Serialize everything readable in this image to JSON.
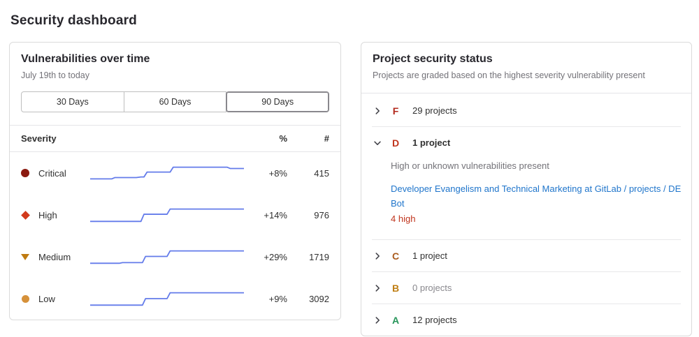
{
  "page": {
    "title": "Security dashboard"
  },
  "colors": {
    "sparkline": "#637bea",
    "link": "#1f75cb",
    "card_border": "#dbdbdb"
  },
  "vuln_card": {
    "title": "Vulnerabilities over time",
    "subtitle": "July 19th to today",
    "range_buttons": [
      {
        "label": "30 Days",
        "active": false
      },
      {
        "label": "60 Days",
        "active": false
      },
      {
        "label": "90 Days",
        "active": true
      }
    ],
    "table": {
      "headers": {
        "severity": "Severity",
        "percent": "%",
        "count": "#"
      },
      "rows": [
        {
          "label": "Critical",
          "icon": "severity-critical-icon",
          "color": "#8b1a10",
          "percent": "+8%",
          "count": "415",
          "spark": [
            [
              0,
              24
            ],
            [
              14,
              24
            ],
            [
              16,
              22
            ],
            [
              30,
              22
            ],
            [
              33,
              21
            ],
            [
              35,
              21
            ],
            [
              37,
              13.5
            ],
            [
              52,
              13.5
            ],
            [
              54,
              6
            ],
            [
              89,
              6
            ],
            [
              91,
              8
            ],
            [
              100,
              8
            ]
          ]
        },
        {
          "label": "High",
          "icon": "severity-high-icon",
          "color": "#d23a1b",
          "percent": "+14%",
          "count": "976",
          "spark": [
            [
              0,
              25
            ],
            [
              33,
              25
            ],
            [
              35,
              14
            ],
            [
              50,
              14
            ],
            [
              52,
              6
            ],
            [
              100,
              6
            ]
          ]
        },
        {
          "label": "Medium",
          "icon": "severity-medium-icon",
          "color": "#bf7b11",
          "percent": "+29%",
          "count": "1719",
          "spark": [
            [
              0,
              25
            ],
            [
              19,
              25
            ],
            [
              21,
              24
            ],
            [
              34,
              24
            ],
            [
              36,
              14.5
            ],
            [
              50,
              14.5
            ],
            [
              52,
              6
            ],
            [
              100,
              6
            ]
          ]
        },
        {
          "label": "Low",
          "icon": "severity-low-icon",
          "color": "#d6913a",
          "percent": "+9%",
          "count": "3092",
          "spark": [
            [
              0,
              25
            ],
            [
              34,
              25
            ],
            [
              36,
              15
            ],
            [
              50,
              15
            ],
            [
              52,
              6
            ],
            [
              100,
              6
            ]
          ]
        }
      ]
    }
  },
  "status_card": {
    "title": "Project security status",
    "subtitle": "Projects are graded based on the highest severity vulnerability present",
    "grades": [
      {
        "letter": "F",
        "color": "#b2271b",
        "count_label": "29 projects",
        "expanded": false
      },
      {
        "letter": "D",
        "color": "#c0341d",
        "count_label": "1 project",
        "expanded": true,
        "description": "High or unknown vulnerabilities present",
        "project_link": "Developer Evangelism and Technical Marketing at GitLab / projects / DE Bot",
        "vulnerability_summary": "4 high"
      },
      {
        "letter": "C",
        "color": "#aa5b1e",
        "count_label": "1 project",
        "expanded": false
      },
      {
        "letter": "B",
        "color": "#bf7e13",
        "count_label": "0 projects",
        "expanded": false,
        "muted": true
      },
      {
        "letter": "A",
        "color": "#27955a",
        "count_label": "12 projects",
        "expanded": false
      }
    ]
  },
  "chart_data": {
    "type": "line",
    "title": "Vulnerabilities over time",
    "subtitle": "July 19th to today",
    "selected_range": "90 Days",
    "legend_position": "table-rows",
    "series": [
      {
        "name": "Critical",
        "percent_change": "+8%",
        "current_count": 415
      },
      {
        "name": "High",
        "percent_change": "+14%",
        "current_count": 976
      },
      {
        "name": "Medium",
        "percent_change": "+29%",
        "current_count": 1719
      },
      {
        "name": "Low",
        "percent_change": "+9%",
        "current_count": 3092
      }
    ],
    "note": "Step-shaped upward sparklines over 90 days; normalized point geometry stored in vuln_card.table.rows[].spark"
  }
}
